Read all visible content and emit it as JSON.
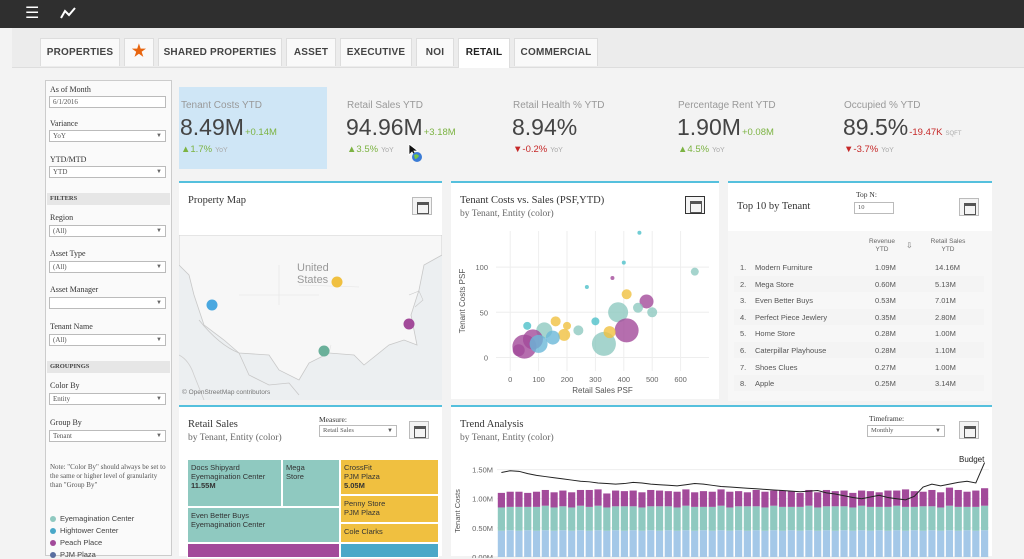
{
  "topbar": {
    "menu_icon": "hamburger-menu-icon",
    "chart_icon": "trend-line-icon"
  },
  "tabs": [
    {
      "label": "PROPERTIES"
    },
    {
      "label": "★"
    },
    {
      "label": "SHARED PROPERTIES"
    },
    {
      "label": "ASSET"
    },
    {
      "label": "EXECUTIVE"
    },
    {
      "label": "NOI"
    },
    {
      "label": "RETAIL"
    },
    {
      "label": "COMMERCIAL"
    }
  ],
  "sidebar": {
    "as_of_month_label": "As of Month",
    "as_of_month_value": "6/1/2016",
    "variance_label": "Variance",
    "variance_value": "YoY",
    "ytd_label": "YTD/MTD",
    "ytd_value": "YTD",
    "filters_header": "FILTERS",
    "region_label": "Region",
    "region_value": "(All)",
    "asset_type_label": "Asset Type",
    "asset_type_value": "(All)",
    "asset_manager_label": "Asset Manager",
    "asset_manager_value": "",
    "tenant_name_label": "Tenant Name",
    "tenant_name_value": "(All)",
    "groupings_header": "GROUPINGS",
    "color_by_label": "Color By",
    "color_by_value": "Entity",
    "group_by_label": "Group By",
    "group_by_value": "Tenant",
    "note": "Note: \"Color By\" should always be set to the same or higher level of granularity than \"Group By\"",
    "legend": [
      {
        "label": "Eyemagination Center",
        "color": "#8fc9c0"
      },
      {
        "label": "Hightower Center",
        "color": "#4aa8c8"
      },
      {
        "label": "Peach Place",
        "color": "#a24a9a"
      },
      {
        "label": "PJM Plaza",
        "color": "#5a6ea0"
      }
    ]
  },
  "kpis": [
    {
      "title": "Tenant Costs YTD",
      "value": "8.49M",
      "delta": "+0.14M",
      "yoy": "▲1.7%",
      "yoy_label": "YoY"
    },
    {
      "title": "Retail Sales YTD",
      "value": "94.96M",
      "delta": "+3.18M",
      "yoy": "▲3.5%",
      "yoy_label": "YoY"
    },
    {
      "title": "Retail Health % YTD",
      "value": "8.94%",
      "delta": "",
      "yoy": "▼-0.2%",
      "yoy_label": "YoY"
    },
    {
      "title": "Percentage Rent YTD",
      "value": "1.90M",
      "delta": "+0.08M",
      "yoy": "▲4.5%",
      "yoy_label": "YoY"
    },
    {
      "title": "Occupied % YTD",
      "value": "89.5%",
      "delta": "-19.47K",
      "delta_unit": "SQFT",
      "yoy": "▼-3.7%",
      "yoy_label": "YoY"
    }
  ],
  "property_map": {
    "title": "Property Map",
    "country_label_1": "United",
    "country_label_2": "States",
    "attribution": "© OpenStreetMap contributors",
    "markers": [
      {
        "color": "#4aa8e0"
      },
      {
        "color": "#f0c040"
      },
      {
        "color": "#6ab09a"
      },
      {
        "color": "#a24a9a"
      }
    ]
  },
  "scatter": {
    "title": "Tenant Costs vs. Sales (PSF,YTD)",
    "subtitle": "by Tenant, Entity (color)"
  },
  "chart_data": [
    {
      "type": "scatter",
      "title": "Tenant Costs vs. Sales (PSF,YTD)",
      "xlabel": "Retail Sales PSF",
      "ylabel": "Tenant Costs PSF",
      "xlim": [
        -50,
        700
      ],
      "ylim": [
        -15,
        140
      ],
      "xticks": [
        0,
        100,
        200,
        300,
        400,
        500,
        600
      ],
      "yticks": [
        0,
        50,
        100
      ],
      "points": [
        {
          "x": 455,
          "y": 138,
          "r": 2,
          "c": "#4ec1c9"
        },
        {
          "x": 650,
          "y": 95,
          "r": 4,
          "c": "#8fc9c0"
        },
        {
          "x": 400,
          "y": 105,
          "r": 2,
          "c": "#4ec1c9"
        },
        {
          "x": 360,
          "y": 88,
          "r": 2,
          "c": "#a24a9a"
        },
        {
          "x": 270,
          "y": 78,
          "r": 2,
          "c": "#4ec1c9"
        },
        {
          "x": 410,
          "y": 70,
          "r": 5,
          "c": "#f0c040"
        },
        {
          "x": 480,
          "y": 62,
          "r": 7,
          "c": "#a24a9a"
        },
        {
          "x": 450,
          "y": 55,
          "r": 5,
          "c": "#8fc9c0"
        },
        {
          "x": 500,
          "y": 50,
          "r": 5,
          "c": "#8fc9c0"
        },
        {
          "x": 380,
          "y": 50,
          "r": 10,
          "c": "#8fc9c0"
        },
        {
          "x": 410,
          "y": 30,
          "r": 12,
          "c": "#a24a9a"
        },
        {
          "x": 300,
          "y": 40,
          "r": 4,
          "c": "#4ec1c9"
        },
        {
          "x": 240,
          "y": 30,
          "r": 5,
          "c": "#8fc9c0"
        },
        {
          "x": 190,
          "y": 25,
          "r": 6,
          "c": "#f0c040"
        },
        {
          "x": 120,
          "y": 30,
          "r": 8,
          "c": "#8fc9c0"
        },
        {
          "x": 80,
          "y": 20,
          "r": 10,
          "c": "#a24a9a"
        },
        {
          "x": 50,
          "y": 12,
          "r": 12,
          "c": "#a24a9a"
        },
        {
          "x": 100,
          "y": 15,
          "r": 9,
          "c": "#6ab8d8"
        },
        {
          "x": 150,
          "y": 22,
          "r": 7,
          "c": "#6ab8d8"
        },
        {
          "x": 30,
          "y": 8,
          "r": 6,
          "c": "#a24a9a"
        },
        {
          "x": 200,
          "y": 35,
          "r": 4,
          "c": "#f0c040"
        },
        {
          "x": 330,
          "y": 15,
          "r": 12,
          "c": "#8fc9c0"
        },
        {
          "x": 350,
          "y": 28,
          "r": 6,
          "c": "#f0c040"
        },
        {
          "x": 160,
          "y": 40,
          "r": 5,
          "c": "#f0c040"
        },
        {
          "x": 60,
          "y": 35,
          "r": 4,
          "c": "#4ec1c9"
        }
      ]
    },
    {
      "type": "bar",
      "title": "Trend Analysis",
      "ylabel": "Tenant Costs",
      "yticks": [
        "0.00M",
        "0.50M",
        "1.00M",
        "1.50M"
      ],
      "ylim": [
        0,
        1.75
      ],
      "series": [
        {
          "name": "",
          "color": "#a4c8e8"
        },
        {
          "name": "",
          "color": "#8fc9c0"
        },
        {
          "name": "",
          "color": "#a24a9a"
        }
      ],
      "stacks": [
        [
          0.45,
          0.4,
          0.25
        ],
        [
          0.46,
          0.4,
          0.26
        ],
        [
          0.45,
          0.41,
          0.26
        ],
        [
          0.46,
          0.4,
          0.24
        ],
        [
          0.45,
          0.41,
          0.26
        ],
        [
          0.46,
          0.42,
          0.27
        ],
        [
          0.45,
          0.4,
          0.26
        ],
        [
          0.46,
          0.41,
          0.27
        ],
        [
          0.45,
          0.4,
          0.26
        ],
        [
          0.46,
          0.42,
          0.27
        ],
        [
          0.45,
          0.41,
          0.29
        ],
        [
          0.46,
          0.42,
          0.28
        ],
        [
          0.45,
          0.4,
          0.24
        ],
        [
          0.46,
          0.41,
          0.27
        ],
        [
          0.45,
          0.42,
          0.26
        ],
        [
          0.46,
          0.41,
          0.27
        ],
        [
          0.45,
          0.4,
          0.26
        ],
        [
          0.46,
          0.41,
          0.28
        ],
        [
          0.45,
          0.42,
          0.27
        ],
        [
          0.46,
          0.41,
          0.26
        ],
        [
          0.45,
          0.4,
          0.27
        ],
        [
          0.46,
          0.42,
          0.28
        ],
        [
          0.45,
          0.41,
          0.25
        ],
        [
          0.46,
          0.4,
          0.27
        ],
        [
          0.45,
          0.41,
          0.26
        ],
        [
          0.46,
          0.42,
          0.28
        ],
        [
          0.45,
          0.4,
          0.27
        ],
        [
          0.46,
          0.41,
          0.26
        ],
        [
          0.45,
          0.42,
          0.24
        ],
        [
          0.46,
          0.41,
          0.28
        ],
        [
          0.45,
          0.4,
          0.27
        ],
        [
          0.46,
          0.42,
          0.26
        ],
        [
          0.45,
          0.41,
          0.28
        ],
        [
          0.46,
          0.4,
          0.27
        ],
        [
          0.45,
          0.41,
          0.24
        ],
        [
          0.46,
          0.42,
          0.27
        ],
        [
          0.45,
          0.4,
          0.26
        ],
        [
          0.46,
          0.41,
          0.28
        ],
        [
          0.45,
          0.42,
          0.26
        ],
        [
          0.46,
          0.41,
          0.27
        ],
        [
          0.45,
          0.4,
          0.25
        ],
        [
          0.46,
          0.42,
          0.26
        ],
        [
          0.45,
          0.41,
          0.27
        ],
        [
          0.46,
          0.4,
          0.25
        ],
        [
          0.45,
          0.41,
          0.28
        ],
        [
          0.46,
          0.42,
          0.26
        ],
        [
          0.45,
          0.41,
          0.3
        ],
        [
          0.46,
          0.4,
          0.27
        ],
        [
          0.45,
          0.42,
          0.25
        ],
        [
          0.46,
          0.41,
          0.28
        ],
        [
          0.45,
          0.4,
          0.26
        ],
        [
          0.46,
          0.42,
          0.31
        ],
        [
          0.45,
          0.41,
          0.29
        ],
        [
          0.46,
          0.4,
          0.26
        ],
        [
          0.45,
          0.41,
          0.28
        ],
        [
          0.46,
          0.42,
          0.3
        ]
      ],
      "budget_label": "Budget",
      "budget": [
        1.45,
        1.48,
        1.47,
        1.43,
        1.4,
        1.38,
        1.36,
        1.34,
        1.32,
        1.3,
        1.29,
        1.27,
        1.26,
        1.25,
        1.26,
        1.28,
        1.27,
        1.25,
        1.24,
        1.23,
        1.22,
        1.24,
        1.26,
        1.25,
        1.23,
        1.21,
        1.2,
        1.19,
        1.18,
        1.17,
        1.16,
        1.15,
        1.14,
        1.13,
        1.12,
        1.13,
        1.14,
        1.1,
        1.08,
        1.05,
        1.02,
        1.0,
        1.03,
        1.06,
        1.02,
        1.0,
        0.98,
        1.04,
        1.2,
        1.25,
        1.22,
        1.25,
        1.28,
        1.3,
        1.27,
        1.62
      ]
    }
  ],
  "top10": {
    "title": "Top 10 by Tenant",
    "topn_label": "Top N:",
    "topn_value": "10",
    "col_revenue": "Revenue\nYTD",
    "col_sales": "Retail Sales\nYTD",
    "rows": [
      {
        "rank": "1.",
        "name": "Modern Furniture",
        "revenue": "1.09M",
        "sales": "14.16M"
      },
      {
        "rank": "2.",
        "name": "Mega Store",
        "revenue": "0.60M",
        "sales": "5.13M"
      },
      {
        "rank": "3.",
        "name": "Even Better Buys",
        "revenue": "0.53M",
        "sales": "7.01M"
      },
      {
        "rank": "4.",
        "name": "Perfect Piece Jewlery",
        "revenue": "0.35M",
        "sales": "2.80M"
      },
      {
        "rank": "5.",
        "name": "Home Store",
        "revenue": "0.28M",
        "sales": "1.00M"
      },
      {
        "rank": "6.",
        "name": "Caterpillar Playhouse",
        "revenue": "0.28M",
        "sales": "1.10M"
      },
      {
        "rank": "7.",
        "name": "Shoes Clues",
        "revenue": "0.27M",
        "sales": "1.00M"
      },
      {
        "rank": "8.",
        "name": "Apple",
        "revenue": "0.25M",
        "sales": "3.14M"
      }
    ]
  },
  "retail_sales": {
    "title": "Retail Sales",
    "subtitle": "by Tenant, Entity (color)",
    "measure_label": "Measure:",
    "measure_value": "Retail Sales",
    "cells": [
      {
        "text": "Docs Shipyard\nEyemagination Center",
        "value": "11.55M",
        "color": "#8fc9c0"
      },
      {
        "text": "Mega\nStore",
        "value": "",
        "color": "#8fc9c0"
      },
      {
        "text": "CrossFit\nPJM Plaza",
        "value": "5.05M",
        "color": "#f0c040"
      },
      {
        "text": "Penny Store\nPJM Plaza",
        "value": "",
        "color": "#f0c040"
      },
      {
        "text": "Cole Clarks",
        "value": "",
        "color": "#f0c040"
      },
      {
        "text": "Even Better Buys\nEyemagination Center",
        "value": "",
        "color": "#8fc9c0"
      },
      {
        "text": "",
        "value": "",
        "color": "#a24a9a"
      },
      {
        "text": "",
        "value": "",
        "color": "#4aa8c8"
      }
    ]
  },
  "trend": {
    "title": "Trend Analysis",
    "subtitle": "by Tenant, Entity (color)",
    "timeframe_label": "Timeframe:",
    "timeframe_value": "Monthly"
  }
}
